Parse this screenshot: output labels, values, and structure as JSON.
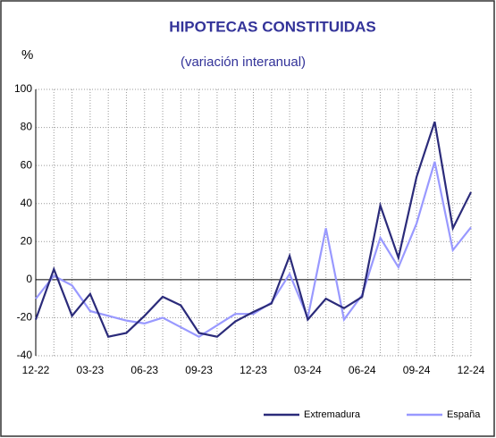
{
  "chart_data": {
    "type": "line",
    "title": "HIPOTECAS CONSTITUIDAS",
    "subtitle": "(variación interanual)",
    "y_label": "%",
    "categories": [
      "12-22",
      null,
      null,
      "03-23",
      null,
      null,
      "06-23",
      null,
      null,
      "09-23",
      null,
      null,
      "12-23",
      null,
      null,
      "03-24",
      null,
      null,
      "06-24",
      null,
      null,
      "09-24",
      null,
      null,
      "12-24"
    ],
    "series": [
      {
        "name": "Extremadura",
        "color": "#2b2b7a",
        "values": [
          -21,
          5.5,
          -19,
          -7.5,
          -30,
          -28,
          -19,
          -9,
          -13.5,
          -28,
          -30,
          -22,
          -17,
          -12.5,
          12.5,
          -21,
          -10,
          -15,
          -9,
          39,
          11.5,
          54,
          83,
          27,
          46
        ]
      },
      {
        "name": "España",
        "color": "#9999ff",
        "values": [
          -10,
          2,
          -3,
          -16.5,
          -19,
          -21.5,
          -23,
          -20,
          -25,
          -30,
          -24,
          -18,
          -18,
          -12,
          3,
          -20,
          27,
          -21,
          -8,
          22,
          6.5,
          29.5,
          62,
          15.5,
          27.5
        ]
      }
    ],
    "ylim": [
      -40,
      100
    ],
    "yticks": [
      -40,
      -20,
      0,
      20,
      40,
      60,
      80,
      100
    ],
    "grid": true,
    "legend": "bottom-right"
  }
}
